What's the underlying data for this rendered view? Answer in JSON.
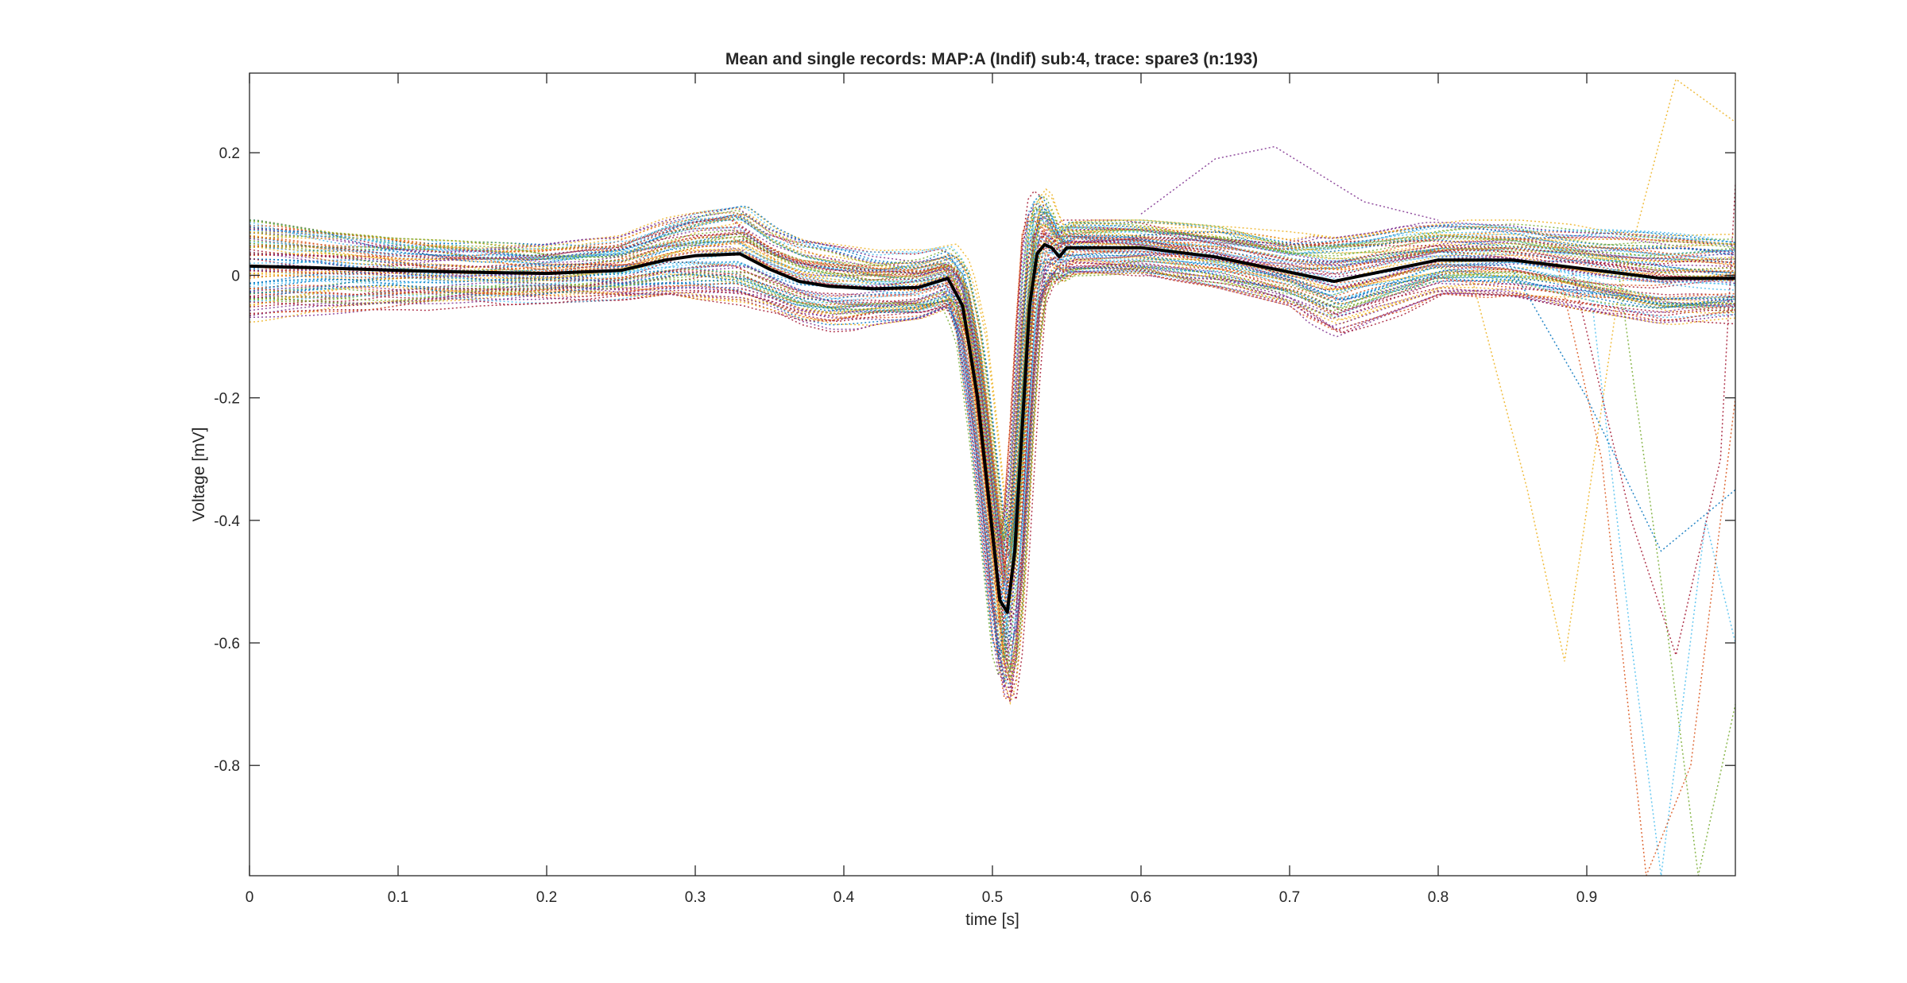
{
  "chart_data": {
    "type": "line",
    "title": "Mean and single records: MAP:A (Indif) sub:4, trace: spare3 (n:193)",
    "xlabel": "time [s]",
    "ylabel": "Voltage [mV]",
    "xlim": [
      0,
      1
    ],
    "ylim": [
      -0.98,
      0.33
    ],
    "xticks": [
      0,
      0.1,
      0.2,
      0.3,
      0.4,
      0.5,
      0.6,
      0.7,
      0.8,
      0.9
    ],
    "xtick_labels": [
      "0",
      "0.1",
      "0.2",
      "0.3",
      "0.4",
      "0.5",
      "0.6",
      "0.7",
      "0.8",
      "0.9"
    ],
    "yticks": [
      0.2,
      0,
      -0.2,
      -0.4,
      -0.6,
      -0.8
    ],
    "ytick_labels": [
      "0.2",
      "0",
      "-0.2",
      "-0.4",
      "-0.6",
      "-0.8"
    ],
    "grid": false,
    "legend": "none",
    "single_records": {
      "count": 193,
      "style": "dotted",
      "colors": [
        "#0072BD",
        "#D95319",
        "#EDB120",
        "#7E2F8E",
        "#77AC30",
        "#4DBEEE",
        "#A2142F"
      ]
    },
    "mean": {
      "style": "solid",
      "color": "#000000",
      "x": [
        0,
        0.05,
        0.1,
        0.15,
        0.2,
        0.25,
        0.28,
        0.3,
        0.33,
        0.35,
        0.37,
        0.39,
        0.42,
        0.45,
        0.47,
        0.48,
        0.49,
        0.5,
        0.505,
        0.51,
        0.515,
        0.52,
        0.525,
        0.53,
        0.535,
        0.54,
        0.545,
        0.55,
        0.6,
        0.65,
        0.7,
        0.73,
        0.76,
        0.8,
        0.85,
        0.9,
        0.95,
        1.0
      ],
      "y": [
        0.015,
        0.012,
        0.008,
        0.005,
        0.003,
        0.008,
        0.025,
        0.032,
        0.035,
        0.01,
        -0.01,
        -0.018,
        -0.022,
        -0.02,
        -0.005,
        -0.05,
        -0.2,
        -0.42,
        -0.53,
        -0.55,
        -0.45,
        -0.25,
        -0.05,
        0.035,
        0.05,
        0.045,
        0.03,
        0.045,
        0.045,
        0.03,
        0.005,
        -0.01,
        0.005,
        0.025,
        0.025,
        0.01,
        -0.005,
        -0.005
      ]
    },
    "envelope": {
      "x": [
        0,
        0.05,
        0.1,
        0.15,
        0.2,
        0.25,
        0.28,
        0.3,
        0.33,
        0.35,
        0.37,
        0.39,
        0.42,
        0.45,
        0.47,
        0.48,
        0.49,
        0.5,
        0.505,
        0.51,
        0.515,
        0.52,
        0.525,
        0.53,
        0.535,
        0.54,
        0.545,
        0.55,
        0.6,
        0.65,
        0.7,
        0.73,
        0.76,
        0.8,
        0.85,
        0.9,
        0.95,
        1.0
      ],
      "upper": [
        0.09,
        0.07,
        0.06,
        0.055,
        0.05,
        0.065,
        0.11,
        0.12,
        0.13,
        0.08,
        0.06,
        0.05,
        0.04,
        0.045,
        0.06,
        0.03,
        -0.08,
        -0.3,
        -0.42,
        -0.44,
        -0.3,
        -0.05,
        0.15,
        0.2,
        0.17,
        0.1,
        0.08,
        0.09,
        0.09,
        0.08,
        0.07,
        0.06,
        0.07,
        0.09,
        0.09,
        0.08,
        0.08,
        0.07
      ],
      "lower": [
        -0.09,
        -0.08,
        -0.06,
        -0.05,
        -0.045,
        -0.04,
        -0.03,
        -0.04,
        -0.05,
        -0.07,
        -0.09,
        -0.1,
        -0.08,
        -0.07,
        -0.05,
        -0.12,
        -0.35,
        -0.6,
        -0.75,
        -0.82,
        -0.7,
        -0.5,
        -0.25,
        -0.05,
        -0.02,
        -0.01,
        -0.02,
        -0.01,
        0.0,
        -0.02,
        -0.05,
        -0.12,
        -0.08,
        -0.03,
        -0.04,
        -0.06,
        -0.08,
        -0.08
      ]
    }
  }
}
